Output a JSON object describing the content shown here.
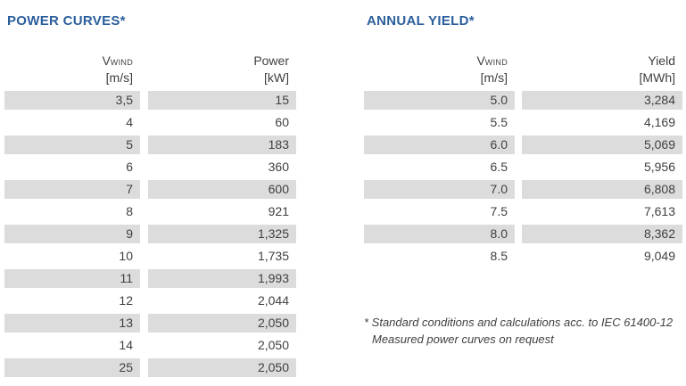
{
  "colors": {
    "title_blue": "#2b5f9c",
    "stripe_gray": "#dcdcdc",
    "text": "#404040"
  },
  "power_curves": {
    "title": "POWER CURVES*",
    "header": {
      "v_symbol": "V",
      "v_sub": "WIND",
      "v_unit": "[m/s]",
      "value_label": "Power",
      "value_unit": "[kW]"
    },
    "rows": [
      {
        "v": "3,5",
        "value": "15"
      },
      {
        "v": "4",
        "value": "60"
      },
      {
        "v": "5",
        "value": "183"
      },
      {
        "v": "6",
        "value": "360"
      },
      {
        "v": "7",
        "value": "600"
      },
      {
        "v": "8",
        "value": "921"
      },
      {
        "v": "9",
        "value": "1,325"
      },
      {
        "v": "10",
        "value": "1,735"
      },
      {
        "v": "11",
        "value": "1,993"
      },
      {
        "v": "12",
        "value": "2,044"
      },
      {
        "v": "13",
        "value": "2,050"
      },
      {
        "v": "14",
        "value": "2,050"
      },
      {
        "v": "25",
        "value": "2,050"
      }
    ]
  },
  "annual_yield": {
    "title": "ANNUAL YIELD*",
    "header": {
      "v_symbol": "V",
      "v_sub": "WIND",
      "v_unit": "[m/s]",
      "value_label": "Yield",
      "value_unit": "[MWh]"
    },
    "rows": [
      {
        "v": "5.0",
        "value": "3,284"
      },
      {
        "v": "5.5",
        "value": "4,169"
      },
      {
        "v": "6.0",
        "value": "5,069"
      },
      {
        "v": "6.5",
        "value": "5,956"
      },
      {
        "v": "7.0",
        "value": "6,808"
      },
      {
        "v": "7.5",
        "value": "7,613"
      },
      {
        "v": "8.0",
        "value": "8,362"
      },
      {
        "v": "8.5",
        "value": "9,049"
      }
    ]
  },
  "footnote": {
    "line1": "* Standard conditions and calculations acc. to IEC 61400-12",
    "line2": "Measured power curves on request"
  }
}
